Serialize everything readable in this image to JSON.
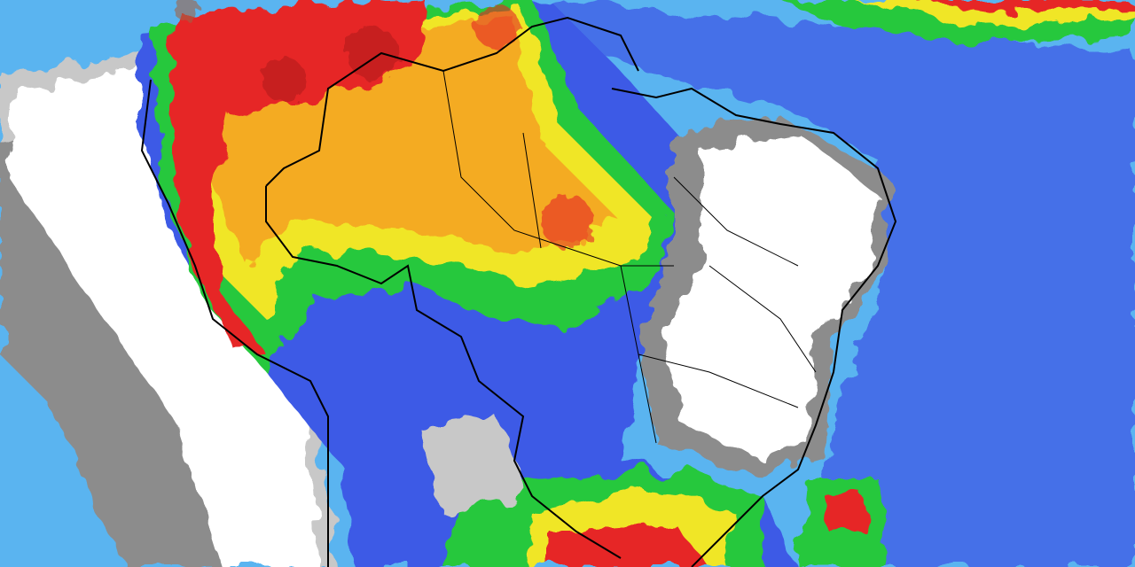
{
  "map": {
    "kind": "precipitation-forecast",
    "region": "South America",
    "colors": {
      "ocean_light_blue": "#5ab4f0",
      "blue": "#3c5ae6",
      "dark_blue": "#2828c8",
      "light_gray": "#c8c8c8",
      "dark_gray": "#8c8c8c",
      "white": "#ffffff",
      "green": "#28c83c",
      "yellow": "#f0e628",
      "orange": "#f5a01e",
      "red": "#e62828",
      "dark_red": "#b41e1e",
      "brown": "#a06446",
      "border": "#000000"
    }
  }
}
